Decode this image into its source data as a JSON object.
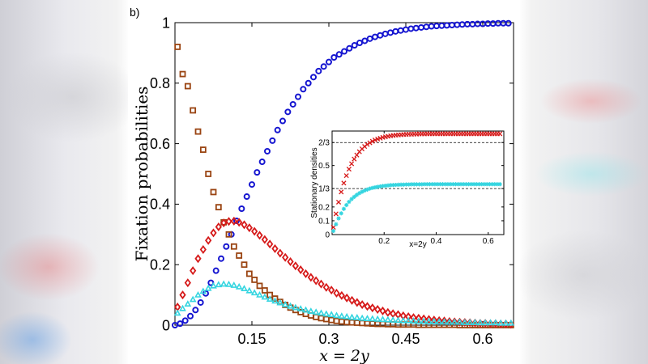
{
  "panel_label": "b)",
  "chart_data": [
    {
      "type": "scatter",
      "xlabel": "x = 2y",
      "ylabel": "Fixation probabilities",
      "xlim": [
        0,
        0.66
      ],
      "ylim": [
        0,
        1
      ],
      "xticks": [
        0.15,
        0.3,
        0.45,
        0.6
      ],
      "xtick_labels": [
        "0.15",
        "0.3",
        "0.45",
        "0.6"
      ],
      "yticks": [
        0,
        0.2,
        0.4,
        0.6,
        0.8,
        1
      ],
      "ytick_labels": [
        "0",
        "0.2",
        "0.4",
        "0.6",
        "0.8",
        "1"
      ],
      "grid": false,
      "series": [
        {
          "marker": "circle",
          "color": "#1515d0",
          "x": [
            0.0,
            0.01,
            0.02,
            0.03,
            0.04,
            0.05,
            0.06,
            0.07,
            0.08,
            0.09,
            0.1,
            0.11,
            0.12,
            0.13,
            0.14,
            0.15,
            0.16,
            0.17,
            0.18,
            0.19,
            0.2,
            0.21,
            0.22,
            0.23,
            0.24,
            0.25,
            0.26,
            0.27,
            0.28,
            0.29,
            0.3,
            0.31,
            0.32,
            0.33,
            0.34,
            0.35,
            0.36,
            0.37,
            0.38,
            0.39,
            0.4,
            0.41,
            0.42,
            0.43,
            0.44,
            0.45,
            0.46,
            0.47,
            0.48,
            0.49,
            0.5,
            0.51,
            0.52,
            0.53,
            0.54,
            0.55,
            0.56,
            0.57,
            0.58,
            0.59,
            0.6,
            0.61,
            0.62,
            0.63,
            0.64,
            0.65
          ],
          "y": [
            0.0,
            0.005,
            0.015,
            0.03,
            0.05,
            0.075,
            0.105,
            0.14,
            0.18,
            0.22,
            0.26,
            0.3,
            0.345,
            0.385,
            0.425,
            0.465,
            0.505,
            0.54,
            0.575,
            0.61,
            0.645,
            0.675,
            0.705,
            0.73,
            0.755,
            0.78,
            0.8,
            0.82,
            0.84,
            0.855,
            0.87,
            0.885,
            0.895,
            0.905,
            0.915,
            0.925,
            0.933,
            0.94,
            0.947,
            0.953,
            0.958,
            0.963,
            0.967,
            0.971,
            0.974,
            0.977,
            0.98,
            0.982,
            0.984,
            0.986,
            0.988,
            0.989,
            0.99,
            0.991,
            0.992,
            0.993,
            0.994,
            0.995,
            0.995,
            0.996,
            0.996,
            0.997,
            0.997,
            0.998,
            0.998,
            0.998
          ]
        },
        {
          "marker": "square",
          "color": "#9a4412",
          "x": [
            0.005,
            0.015,
            0.025,
            0.035,
            0.045,
            0.055,
            0.065,
            0.075,
            0.085,
            0.095,
            0.105,
            0.115,
            0.125,
            0.135,
            0.145,
            0.155,
            0.165,
            0.175,
            0.185,
            0.195,
            0.205,
            0.215,
            0.225,
            0.235,
            0.245,
            0.255,
            0.265,
            0.275,
            0.285,
            0.295,
            0.305,
            0.315,
            0.325,
            0.335,
            0.345,
            0.355,
            0.365,
            0.375,
            0.385,
            0.395,
            0.405,
            0.415,
            0.425,
            0.435,
            0.445,
            0.455,
            0.465,
            0.475,
            0.485,
            0.495,
            0.505,
            0.515,
            0.525,
            0.535,
            0.545,
            0.555,
            0.565,
            0.575,
            0.585,
            0.595,
            0.605,
            0.615,
            0.625,
            0.635,
            0.645,
            0.655
          ],
          "y": [
            0.92,
            0.83,
            0.79,
            0.71,
            0.64,
            0.58,
            0.5,
            0.44,
            0.39,
            0.34,
            0.3,
            0.26,
            0.23,
            0.2,
            0.17,
            0.15,
            0.13,
            0.115,
            0.1,
            0.088,
            0.077,
            0.067,
            0.058,
            0.05,
            0.043,
            0.037,
            0.032,
            0.027,
            0.023,
            0.02,
            0.017,
            0.014,
            0.012,
            0.01,
            0.009,
            0.008,
            0.007,
            0.006,
            0.005,
            0.004,
            0.004,
            0.003,
            0.003,
            0.002,
            0.002,
            0.002,
            0.002,
            0.001,
            0.001,
            0.001,
            0.001,
            0.001,
            0.001,
            0.001,
            0.001,
            0.0,
            0.0,
            0.0,
            0.0,
            0.0,
            0.0,
            0.0,
            0.0,
            0.0,
            0.0,
            0.0
          ]
        },
        {
          "marker": "diamond",
          "color": "#d61a1a",
          "x": [
            0.005,
            0.015,
            0.025,
            0.035,
            0.045,
            0.055,
            0.065,
            0.075,
            0.085,
            0.095,
            0.105,
            0.115,
            0.125,
            0.135,
            0.145,
            0.155,
            0.165,
            0.175,
            0.185,
            0.195,
            0.205,
            0.215,
            0.225,
            0.235,
            0.245,
            0.255,
            0.265,
            0.275,
            0.285,
            0.295,
            0.305,
            0.315,
            0.325,
            0.335,
            0.345,
            0.355,
            0.365,
            0.375,
            0.385,
            0.395,
            0.405,
            0.415,
            0.425,
            0.435,
            0.445,
            0.455,
            0.465,
            0.475,
            0.485,
            0.495,
            0.505,
            0.515,
            0.525,
            0.535,
            0.545,
            0.555,
            0.565,
            0.575,
            0.585,
            0.595,
            0.605,
            0.615,
            0.625,
            0.635,
            0.645,
            0.655
          ],
          "y": [
            0.06,
            0.1,
            0.14,
            0.18,
            0.22,
            0.25,
            0.28,
            0.305,
            0.325,
            0.338,
            0.343,
            0.344,
            0.34,
            0.332,
            0.322,
            0.31,
            0.297,
            0.283,
            0.268,
            0.253,
            0.238,
            0.224,
            0.21,
            0.196,
            0.183,
            0.17,
            0.158,
            0.147,
            0.136,
            0.125,
            0.116,
            0.106,
            0.098,
            0.09,
            0.082,
            0.075,
            0.068,
            0.062,
            0.057,
            0.052,
            0.047,
            0.042,
            0.038,
            0.035,
            0.031,
            0.028,
            0.025,
            0.023,
            0.021,
            0.019,
            0.017,
            0.015,
            0.014,
            0.012,
            0.011,
            0.01,
            0.009,
            0.008,
            0.007,
            0.006,
            0.006,
            0.005,
            0.005,
            0.004,
            0.004,
            0.003
          ]
        },
        {
          "marker": "triangle",
          "color": "#35d5e0",
          "x": [
            0.005,
            0.015,
            0.025,
            0.035,
            0.045,
            0.055,
            0.065,
            0.075,
            0.085,
            0.095,
            0.105,
            0.115,
            0.125,
            0.135,
            0.145,
            0.155,
            0.165,
            0.175,
            0.185,
            0.195,
            0.205,
            0.215,
            0.225,
            0.235,
            0.245,
            0.255,
            0.265,
            0.275,
            0.285,
            0.295,
            0.305,
            0.315,
            0.325,
            0.335,
            0.345,
            0.355,
            0.365,
            0.375,
            0.385,
            0.395,
            0.405,
            0.415,
            0.425,
            0.435,
            0.445,
            0.455,
            0.465,
            0.475,
            0.485,
            0.495,
            0.505,
            0.515,
            0.525,
            0.535,
            0.545,
            0.555,
            0.565,
            0.575,
            0.585,
            0.595,
            0.605,
            0.615,
            0.625,
            0.635,
            0.645,
            0.655
          ],
          "y": [
            0.04,
            0.055,
            0.07,
            0.085,
            0.1,
            0.112,
            0.122,
            0.13,
            0.134,
            0.136,
            0.135,
            0.132,
            0.127,
            0.121,
            0.114,
            0.107,
            0.1,
            0.093,
            0.086,
            0.08,
            0.074,
            0.068,
            0.063,
            0.058,
            0.054,
            0.05,
            0.046,
            0.043,
            0.04,
            0.037,
            0.035,
            0.032,
            0.03,
            0.028,
            0.026,
            0.025,
            0.023,
            0.022,
            0.021,
            0.02,
            0.019,
            0.018,
            0.017,
            0.016,
            0.015,
            0.015,
            0.014,
            0.013,
            0.013,
            0.012,
            0.012,
            0.011,
            0.011,
            0.01,
            0.01,
            0.01,
            0.009,
            0.009,
            0.009,
            0.008,
            0.008,
            0.008,
            0.008,
            0.007,
            0.007,
            0.007
          ]
        }
      ]
    },
    {
      "type": "scatter",
      "xlabel": "x=2y",
      "ylabel": "Stationary densities",
      "xlim": [
        0,
        0.66
      ],
      "ylim": [
        0,
        0.75
      ],
      "xticks": [
        0.2,
        0.4,
        0.6
      ],
      "xtick_labels": [
        "0.2",
        "0.4",
        "0.6"
      ],
      "yticks": [
        0,
        0.1,
        0.2,
        0.3333,
        0.5,
        0.6667
      ],
      "ytick_labels": [
        "0",
        "0.1",
        "0.2",
        "1/3",
        "0.5",
        "2/3"
      ],
      "reference_lines": [
        0.6667,
        0.3333
      ],
      "grid": false,
      "series": [
        {
          "marker": "x",
          "color": "#d61a1a",
          "x": [
            0.005,
            0.015,
            0.025,
            0.035,
            0.045,
            0.055,
            0.065,
            0.075,
            0.085,
            0.095,
            0.105,
            0.115,
            0.125,
            0.135,
            0.145,
            0.155,
            0.165,
            0.175,
            0.185,
            0.195,
            0.205,
            0.215,
            0.225,
            0.235,
            0.245,
            0.255,
            0.265,
            0.275,
            0.285,
            0.295,
            0.305,
            0.315,
            0.325,
            0.335,
            0.345,
            0.355,
            0.365,
            0.375,
            0.385,
            0.395,
            0.405,
            0.415,
            0.425,
            0.435,
            0.445,
            0.455,
            0.465,
            0.475,
            0.485,
            0.495,
            0.505,
            0.515,
            0.525,
            0.535,
            0.545,
            0.555,
            0.565,
            0.575,
            0.585,
            0.595,
            0.605,
            0.615,
            0.625,
            0.635,
            0.645
          ],
          "y": [
            0.053,
            0.15,
            0.235,
            0.309,
            0.373,
            0.427,
            0.474,
            0.513,
            0.547,
            0.576,
            0.6,
            0.621,
            0.638,
            0.653,
            0.665,
            0.676,
            0.685,
            0.692,
            0.698,
            0.704,
            0.708,
            0.712,
            0.715,
            0.718,
            0.72,
            0.722,
            0.723,
            0.725,
            0.726,
            0.727,
            0.727,
            0.728,
            0.728,
            0.729,
            0.729,
            0.729,
            0.73,
            0.73,
            0.73,
            0.73,
            0.73,
            0.73,
            0.73,
            0.73,
            0.73,
            0.73,
            0.73,
            0.73,
            0.73,
            0.73,
            0.73,
            0.73,
            0.73,
            0.73,
            0.73,
            0.73,
            0.73,
            0.73,
            0.73,
            0.73,
            0.73,
            0.73,
            0.73,
            0.73,
            0.73
          ]
        },
        {
          "marker": "asterisk",
          "color": "#35d5e0",
          "x": [
            0.005,
            0.015,
            0.025,
            0.035,
            0.045,
            0.055,
            0.065,
            0.075,
            0.085,
            0.095,
            0.105,
            0.115,
            0.125,
            0.135,
            0.145,
            0.155,
            0.165,
            0.175,
            0.185,
            0.195,
            0.205,
            0.215,
            0.225,
            0.235,
            0.245,
            0.255,
            0.265,
            0.275,
            0.285,
            0.295,
            0.305,
            0.315,
            0.325,
            0.335,
            0.345,
            0.355,
            0.365,
            0.375,
            0.385,
            0.395,
            0.405,
            0.415,
            0.425,
            0.435,
            0.445,
            0.455,
            0.465,
            0.475,
            0.485,
            0.495,
            0.505,
            0.515,
            0.525,
            0.535,
            0.545,
            0.555,
            0.565,
            0.575,
            0.585,
            0.595,
            0.605,
            0.615,
            0.625,
            0.635,
            0.645
          ],
          "y": [
            0.026,
            0.075,
            0.117,
            0.154,
            0.186,
            0.214,
            0.237,
            0.257,
            0.273,
            0.288,
            0.3,
            0.31,
            0.319,
            0.326,
            0.333,
            0.338,
            0.342,
            0.346,
            0.349,
            0.352,
            0.354,
            0.356,
            0.358,
            0.359,
            0.36,
            0.361,
            0.362,
            0.362,
            0.363,
            0.363,
            0.364,
            0.364,
            0.364,
            0.364,
            0.364,
            0.365,
            0.365,
            0.365,
            0.365,
            0.365,
            0.365,
            0.365,
            0.365,
            0.365,
            0.365,
            0.365,
            0.365,
            0.365,
            0.365,
            0.365,
            0.365,
            0.365,
            0.365,
            0.365,
            0.365,
            0.365,
            0.365,
            0.365,
            0.365,
            0.365,
            0.365,
            0.365,
            0.365,
            0.365,
            0.365
          ]
        }
      ]
    }
  ]
}
